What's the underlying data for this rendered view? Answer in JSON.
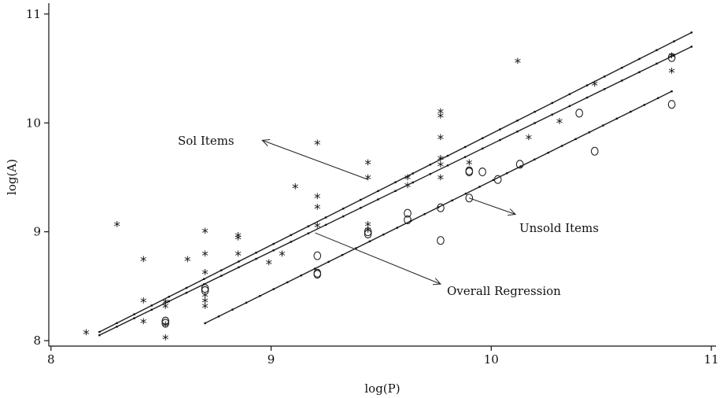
{
  "chart_data": {
    "type": "scatter",
    "title": "",
    "xlabel": "log(P)",
    "ylabel": "log(A)",
    "xlim": [
      8,
      11
    ],
    "ylim": [
      7.95,
      11.1
    ],
    "xticks": [
      8,
      9,
      10,
      11
    ],
    "yticks": [
      8,
      9,
      10,
      11
    ],
    "grid": false,
    "series": [
      {
        "name": "Sold Items",
        "marker": "*",
        "points": [
          [
            8.16,
            8.06
          ],
          [
            8.3,
            9.05
          ],
          [
            8.42,
            8.73
          ],
          [
            8.42,
            8.35
          ],
          [
            8.42,
            8.16
          ],
          [
            8.52,
            8.34
          ],
          [
            8.52,
            8.3
          ],
          [
            8.52,
            8.13
          ],
          [
            8.52,
            8.01
          ],
          [
            8.62,
            8.73
          ],
          [
            8.7,
            8.99
          ],
          [
            8.7,
            8.78
          ],
          [
            8.7,
            8.61
          ],
          [
            8.7,
            8.4
          ],
          [
            8.7,
            8.35
          ],
          [
            8.7,
            8.3
          ],
          [
            8.85,
            8.95
          ],
          [
            8.85,
            8.93
          ],
          [
            8.85,
            8.78
          ],
          [
            8.99,
            8.7
          ],
          [
            9.05,
            8.78
          ],
          [
            9.11,
            9.4
          ],
          [
            9.21,
            9.8
          ],
          [
            9.21,
            9.31
          ],
          [
            9.21,
            9.21
          ],
          [
            9.21,
            9.04
          ],
          [
            9.44,
            9.62
          ],
          [
            9.44,
            9.48
          ],
          [
            9.44,
            9.05
          ],
          [
            9.44,
            9.0
          ],
          [
            9.62,
            9.48
          ],
          [
            9.62,
            9.41
          ],
          [
            9.77,
            10.09
          ],
          [
            9.77,
            10.05
          ],
          [
            9.77,
            9.85
          ],
          [
            9.77,
            9.66
          ],
          [
            9.77,
            9.6
          ],
          [
            9.77,
            9.48
          ],
          [
            9.9,
            9.62
          ],
          [
            10.12,
            10.55
          ],
          [
            10.17,
            9.85
          ],
          [
            10.31,
            10.0
          ],
          [
            10.47,
            10.34
          ],
          [
            10.82,
            10.6
          ],
          [
            10.82,
            10.46
          ]
        ]
      },
      {
        "name": "Unsold Items",
        "marker": "o",
        "points": [
          [
            8.52,
            8.18
          ],
          [
            8.52,
            8.16
          ],
          [
            8.7,
            8.48
          ],
          [
            8.7,
            8.46
          ],
          [
            9.21,
            8.78
          ],
          [
            9.21,
            8.62
          ],
          [
            9.21,
            8.61
          ],
          [
            9.44,
            9.0
          ],
          [
            9.44,
            8.98
          ],
          [
            9.62,
            9.17
          ],
          [
            9.62,
            9.11
          ],
          [
            9.77,
            9.22
          ],
          [
            9.77,
            8.92
          ],
          [
            9.9,
            9.56
          ],
          [
            9.9,
            9.55
          ],
          [
            9.9,
            9.31
          ],
          [
            9.96,
            9.55
          ],
          [
            10.03,
            9.48
          ],
          [
            10.13,
            9.62
          ],
          [
            10.4,
            10.09
          ],
          [
            10.47,
            9.74
          ],
          [
            10.82,
            10.6
          ],
          [
            10.82,
            10.17
          ]
        ]
      }
    ],
    "lines": [
      {
        "role": "sold-regression",
        "x": [
          8.22,
          10.91
        ],
        "y": [
          8.08,
          10.83
        ]
      },
      {
        "role": "overall-regression",
        "x": [
          8.22,
          10.91
        ],
        "y": [
          8.05,
          10.7
        ]
      },
      {
        "role": "unsold-regression",
        "x": [
          8.7,
          10.82
        ],
        "y": [
          8.16,
          10.29
        ]
      }
    ],
    "annotations": [
      {
        "text": "Sol Items",
        "arrow_from": [
          9.44,
          9.48
        ],
        "arrow_to": [
          8.96,
          9.84
        ]
      },
      {
        "text": "Unsold Items",
        "arrow_from": [
          9.9,
          9.31
        ],
        "arrow_to": [
          10.11,
          9.16
        ]
      },
      {
        "text": "Overall Regression",
        "arrow_from": [
          9.2,
          8.99
        ],
        "arrow_to": [
          9.77,
          8.52
        ]
      }
    ]
  }
}
